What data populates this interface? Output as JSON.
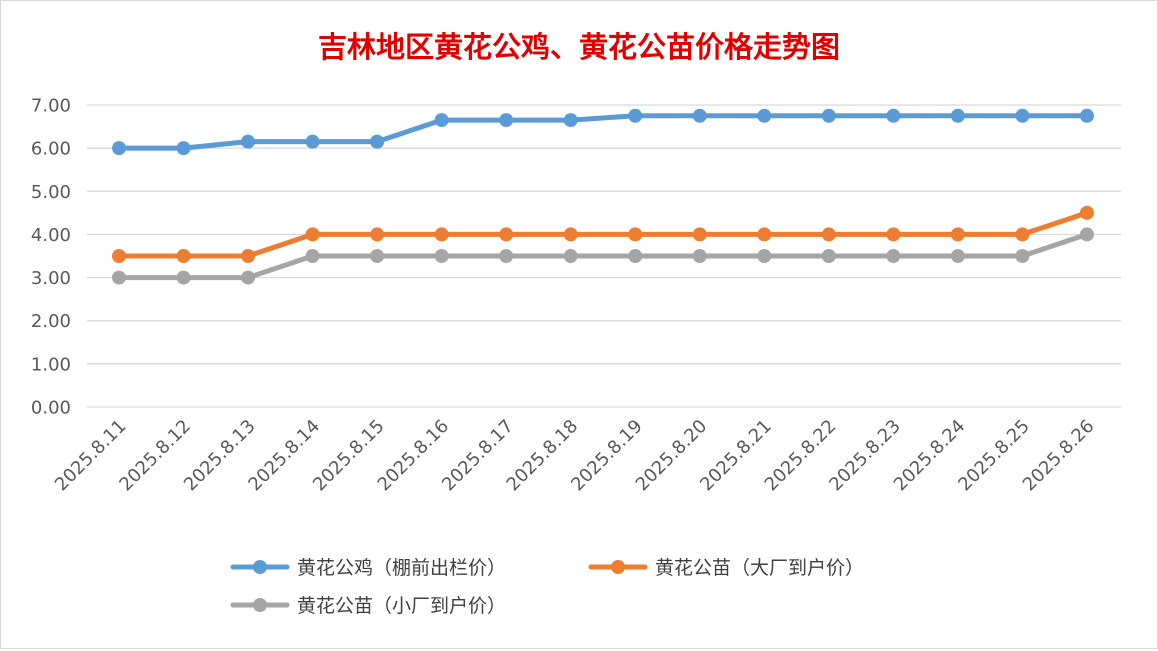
{
  "chart_data": {
    "type": "line",
    "title": "吉林地区黄花公鸡、黄花公苗价格走势图",
    "categories": [
      "2025.8.11",
      "2025.8.12",
      "2025.8.13",
      "2025.8.14",
      "2025.8.15",
      "2025.8.16",
      "2025.8.17",
      "2025.8.18",
      "2025.8.19",
      "2025.8.20",
      "2025.8.21",
      "2025.8.22",
      "2025.8.23",
      "2025.8.24",
      "2025.8.25",
      "2025.8.26"
    ],
    "series": [
      {
        "name": "黄花公鸡（棚前出栏价）",
        "color": "#5b9bd5",
        "values": [
          6.0,
          6.0,
          6.15,
          6.15,
          6.15,
          6.65,
          6.65,
          6.65,
          6.75,
          6.75,
          6.75,
          6.75,
          6.75,
          6.75,
          6.75,
          6.75
        ]
      },
      {
        "name": "黄花公苗（大厂到户价）",
        "color": "#ed7d31",
        "values": [
          3.5,
          3.5,
          3.5,
          4.0,
          4.0,
          4.0,
          4.0,
          4.0,
          4.0,
          4.0,
          4.0,
          4.0,
          4.0,
          4.0,
          4.0,
          4.5
        ]
      },
      {
        "name": "黄花公苗（小厂到户价）",
        "color": "#a5a5a5",
        "values": [
          3.0,
          3.0,
          3.0,
          3.5,
          3.5,
          3.5,
          3.5,
          3.5,
          3.5,
          3.5,
          3.5,
          3.5,
          3.5,
          3.5,
          3.5,
          4.0
        ]
      }
    ],
    "yticks": [
      "0.00",
      "1.00",
      "2.00",
      "3.00",
      "4.00",
      "5.00",
      "6.00",
      "7.00"
    ],
    "ylim": [
      0,
      7
    ],
    "xlabel": "",
    "ylabel": "",
    "grid": true,
    "legend": "bottom",
    "gridColor": "#d9d9d9",
    "titleColor": "#e00000"
  }
}
